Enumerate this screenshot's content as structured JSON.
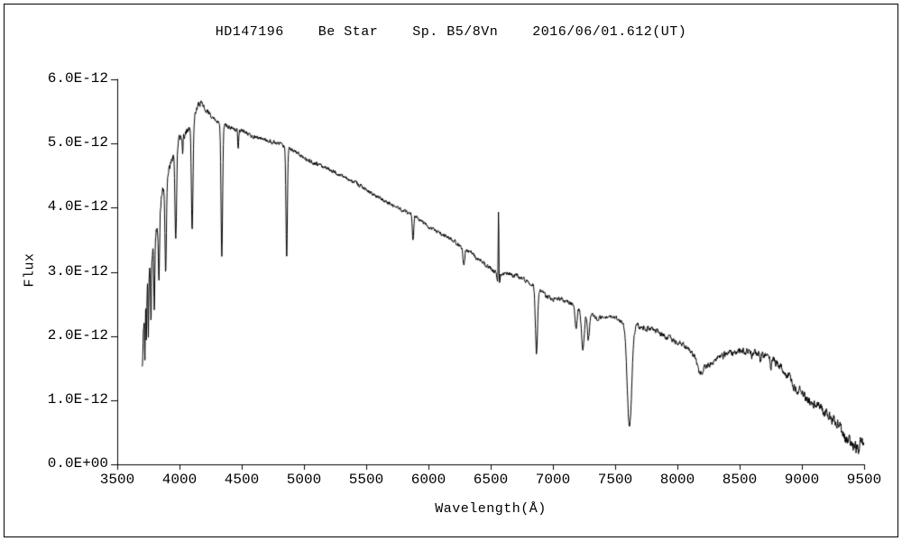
{
  "chart_data": {
    "type": "line",
    "title": "HD147196    Be Star    Sp. B5/8Vn    2016/06/01.612(UT)",
    "xlabel": "Wavelength(Å)",
    "ylabel": "Flux",
    "xlim": [
      3500,
      9500
    ],
    "ylim": [
      0,
      6e-12
    ],
    "flux_unit_factor": 1e-12,
    "grid": false,
    "legend": null,
    "line_color": "#000000",
    "axis_color": "#000000",
    "background_color": "#ffffff",
    "x_ticks": [
      3500,
      4000,
      4500,
      5000,
      5500,
      6000,
      6500,
      7000,
      7500,
      8000,
      8500,
      9000,
      9500
    ],
    "y_tick_values_units": [
      0,
      1,
      2,
      3,
      4,
      5,
      6
    ],
    "y_tick_labels": [
      "0.0E+00",
      "1.0E-12",
      "2.0E-12",
      "3.0E-12",
      "4.0E-12",
      "5.0E-12",
      "6.0E-12"
    ],
    "data_range": [
      3700,
      9500
    ],
    "sample_step": 2.5,
    "noise_seed": 42,
    "continuum_points_units": [
      [
        3700,
        1.5
      ],
      [
        3715,
        2.2
      ],
      [
        3730,
        2.7
      ],
      [
        3745,
        2.85
      ],
      [
        3760,
        3.0
      ],
      [
        3780,
        3.25
      ],
      [
        3800,
        3.5
      ],
      [
        3825,
        3.8
      ],
      [
        3850,
        4.1
      ],
      [
        3875,
        4.3
      ],
      [
        3900,
        4.5
      ],
      [
        3925,
        4.65
      ],
      [
        3950,
        4.8
      ],
      [
        3975,
        4.95
      ],
      [
        4000,
        5.1
      ],
      [
        4050,
        5.15
      ],
      [
        4100,
        5.3
      ],
      [
        4150,
        5.6
      ],
      [
        4175,
        5.65
      ],
      [
        4200,
        5.55
      ],
      [
        4250,
        5.45
      ],
      [
        4300,
        5.35
      ],
      [
        4350,
        5.3
      ],
      [
        4400,
        5.25
      ],
      [
        4450,
        5.22
      ],
      [
        4500,
        5.2
      ],
      [
        4550,
        5.15
      ],
      [
        4600,
        5.1
      ],
      [
        4650,
        5.08
      ],
      [
        4700,
        5.05
      ],
      [
        4750,
        5.02
      ],
      [
        4800,
        5.0
      ],
      [
        4850,
        4.95
      ],
      [
        4900,
        4.9
      ],
      [
        4950,
        4.85
      ],
      [
        5000,
        4.78
      ],
      [
        5050,
        4.72
      ],
      [
        5100,
        4.68
      ],
      [
        5150,
        4.64
      ],
      [
        5200,
        4.6
      ],
      [
        5250,
        4.55
      ],
      [
        5300,
        4.5
      ],
      [
        5350,
        4.45
      ],
      [
        5400,
        4.4
      ],
      [
        5450,
        4.35
      ],
      [
        5500,
        4.28
      ],
      [
        5550,
        4.22
      ],
      [
        5600,
        4.15
      ],
      [
        5650,
        4.1
      ],
      [
        5700,
        4.05
      ],
      [
        5750,
        4.0
      ],
      [
        5800,
        3.95
      ],
      [
        5850,
        3.9
      ],
      [
        5900,
        3.85
      ],
      [
        5950,
        3.78
      ],
      [
        6000,
        3.7
      ],
      [
        6050,
        3.65
      ],
      [
        6100,
        3.6
      ],
      [
        6150,
        3.55
      ],
      [
        6200,
        3.48
      ],
      [
        6250,
        3.42
      ],
      [
        6300,
        3.35
      ],
      [
        6350,
        3.28
      ],
      [
        6400,
        3.2
      ],
      [
        6450,
        3.12
      ],
      [
        6500,
        3.05
      ],
      [
        6550,
        2.98
      ],
      [
        6600,
        2.96
      ],
      [
        6650,
        2.96
      ],
      [
        6700,
        2.95
      ],
      [
        6750,
        2.9
      ],
      [
        6800,
        2.85
      ],
      [
        6850,
        2.78
      ],
      [
        6900,
        2.72
      ],
      [
        6950,
        2.62
      ],
      [
        7000,
        2.58
      ],
      [
        7050,
        2.6
      ],
      [
        7100,
        2.55
      ],
      [
        7150,
        2.5
      ],
      [
        7200,
        2.45
      ],
      [
        7250,
        2.4
      ],
      [
        7300,
        2.33
      ],
      [
        7350,
        2.28
      ],
      [
        7400,
        2.3
      ],
      [
        7450,
        2.32
      ],
      [
        7500,
        2.28
      ],
      [
        7550,
        2.24
      ],
      [
        7600,
        2.2
      ],
      [
        7650,
        2.18
      ],
      [
        7700,
        2.15
      ],
      [
        7750,
        2.12
      ],
      [
        7800,
        2.1
      ],
      [
        7850,
        2.05
      ],
      [
        7900,
        2.0
      ],
      [
        7950,
        1.95
      ],
      [
        8000,
        1.9
      ],
      [
        8050,
        1.85
      ],
      [
        8100,
        1.78
      ],
      [
        8150,
        1.65
      ],
      [
        8200,
        1.55
      ],
      [
        8250,
        1.55
      ],
      [
        8300,
        1.62
      ],
      [
        8350,
        1.68
      ],
      [
        8400,
        1.72
      ],
      [
        8450,
        1.74
      ],
      [
        8500,
        1.76
      ],
      [
        8550,
        1.76
      ],
      [
        8600,
        1.75
      ],
      [
        8650,
        1.72
      ],
      [
        8700,
        1.7
      ],
      [
        8750,
        1.65
      ],
      [
        8800,
        1.58
      ],
      [
        8850,
        1.48
      ],
      [
        8900,
        1.38
      ],
      [
        8950,
        1.25
      ],
      [
        9000,
        1.1
      ],
      [
        9050,
        1.0
      ],
      [
        9100,
        0.95
      ],
      [
        9150,
        0.88
      ],
      [
        9200,
        0.78
      ],
      [
        9250,
        0.68
      ],
      [
        9300,
        0.58
      ],
      [
        9350,
        0.42
      ],
      [
        9400,
        0.28
      ],
      [
        9440,
        0.22
      ],
      [
        9470,
        0.35
      ],
      [
        9500,
        0.45
      ]
    ],
    "features_units": [
      {
        "center": 3722,
        "amp": -0.75,
        "sigma": 4
      },
      {
        "center": 3734,
        "amp": -0.85,
        "sigma": 4
      },
      {
        "center": 3750,
        "amp": -0.9,
        "sigma": 4
      },
      {
        "center": 3771,
        "amp": -1.0,
        "sigma": 5
      },
      {
        "center": 3798,
        "amp": -1.05,
        "sigma": 6
      },
      {
        "center": 3835,
        "amp": -1.15,
        "sigma": 7
      },
      {
        "center": 3889,
        "amp": -1.45,
        "sigma": 8
      },
      {
        "center": 3970,
        "amp": -1.45,
        "sigma": 9
      },
      {
        "center": 4026,
        "amp": -0.3,
        "sigma": 4
      },
      {
        "center": 4102,
        "amp": -1.7,
        "sigma": 9
      },
      {
        "center": 4340,
        "amp": -2.05,
        "sigma": 9
      },
      {
        "center": 4471,
        "amp": -0.3,
        "sigma": 5
      },
      {
        "center": 4861,
        "amp": -1.75,
        "sigma": 8
      },
      {
        "center": 5876,
        "amp": -0.38,
        "sigma": 8
      },
      {
        "center": 6284,
        "amp": -0.28,
        "sigma": 10
      },
      {
        "center": 6563,
        "amp": -0.3,
        "sigma": 12
      },
      {
        "center": 6563,
        "amp": 1.25,
        "sigma": 4
      },
      {
        "center": 6868,
        "amp": -1.05,
        "sigma": 12
      },
      {
        "center": 7186,
        "amp": -0.35,
        "sigma": 12
      },
      {
        "center": 7240,
        "amp": -0.6,
        "sigma": 16
      },
      {
        "center": 7285,
        "amp": -0.4,
        "sigma": 12
      },
      {
        "center": 7615,
        "amp": -1.6,
        "sigma": 26
      },
      {
        "center": 8180,
        "amp": -0.18,
        "sigma": 25
      },
      {
        "center": 8545,
        "amp": -0.08,
        "sigma": 6
      },
      {
        "center": 8598,
        "amp": -0.07,
        "sigma": 6
      },
      {
        "center": 8665,
        "amp": -0.1,
        "sigma": 7
      },
      {
        "center": 8750,
        "amp": -0.12,
        "sigma": 8
      },
      {
        "center": 8940,
        "amp": -0.1,
        "sigma": 25
      }
    ],
    "noise_profile_units": [
      [
        3700,
        0.12
      ],
      [
        3800,
        0.07
      ],
      [
        4000,
        0.045
      ],
      [
        4300,
        0.03
      ],
      [
        5000,
        0.025
      ],
      [
        6000,
        0.025
      ],
      [
        6800,
        0.03
      ],
      [
        7500,
        0.03
      ],
      [
        8200,
        0.04
      ],
      [
        8800,
        0.05
      ],
      [
        9200,
        0.07
      ],
      [
        9500,
        0.09
      ]
    ]
  }
}
